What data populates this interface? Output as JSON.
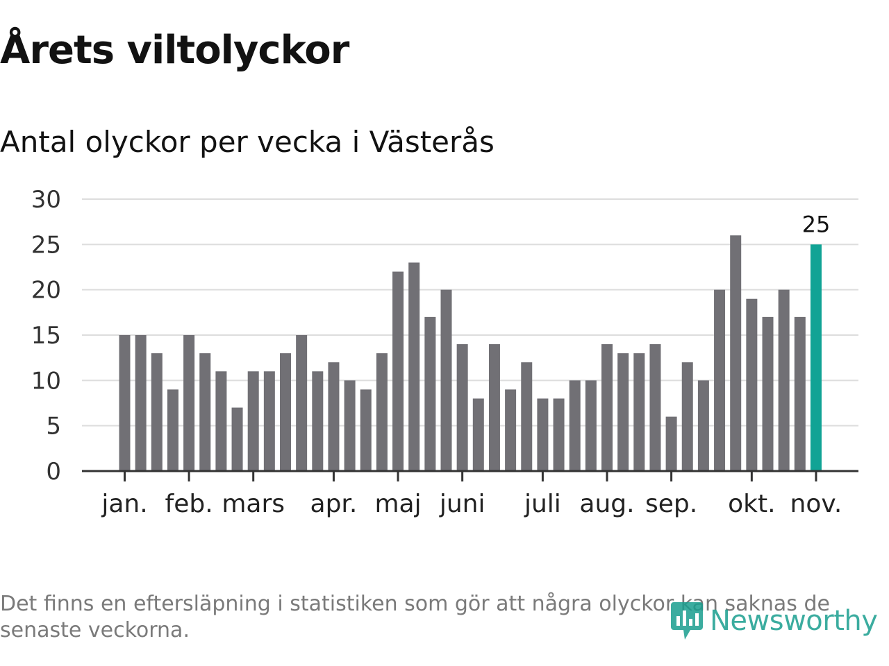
{
  "chart_data": {
    "type": "bar",
    "title": "Årets viltolyckor",
    "subtitle": "Antal olyckor per vecka i Västerås",
    "values": [
      15,
      15,
      13,
      9,
      15,
      13,
      11,
      7,
      11,
      11,
      13,
      15,
      11,
      12,
      10,
      9,
      13,
      22,
      23,
      17,
      20,
      14,
      8,
      14,
      9,
      12,
      8,
      8,
      10,
      10,
      14,
      13,
      13,
      14,
      6,
      12,
      10,
      20,
      26,
      19,
      17,
      20,
      17,
      25
    ],
    "highlight_index": 43,
    "highlight_label": "25",
    "ylim": [
      0,
      30
    ],
    "yticks": [
      "0",
      "5",
      "10",
      "15",
      "20",
      "25",
      "30"
    ],
    "month_ticks": [
      {
        "label": "jan.",
        "week": 0
      },
      {
        "label": "feb.",
        "week": 4
      },
      {
        "label": "mars",
        "week": 8
      },
      {
        "label": "apr.",
        "week": 13
      },
      {
        "label": "maj",
        "week": 17
      },
      {
        "label": "juni",
        "week": 21
      },
      {
        "label": "juli",
        "week": 26
      },
      {
        "label": "aug.",
        "week": 30
      },
      {
        "label": "sep.",
        "week": 34
      },
      {
        "label": "okt.",
        "week": 39
      },
      {
        "label": "nov.",
        "week": 43
      }
    ],
    "grid": true,
    "colors": {
      "bar": "#717075",
      "highlight": "#11a395",
      "grid": "#dddddd",
      "axis": "#333333"
    }
  },
  "footnote": "Det finns en eftersläpning i statistiken som gör att några olyckor kan saknas de senaste veckorna.",
  "logo": {
    "icon": "newsworthy-logo-icon",
    "text": "Newsworthy"
  }
}
